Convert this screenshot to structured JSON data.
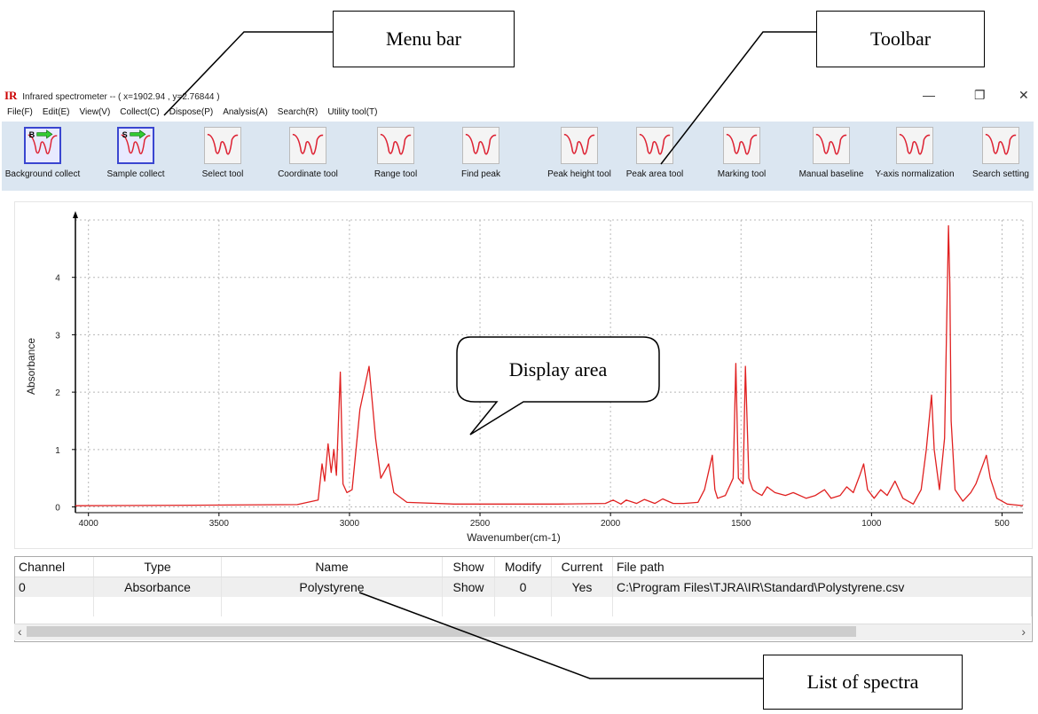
{
  "annotations": {
    "menu_bar": "Menu bar",
    "toolbar": "Toolbar",
    "display_area": "Display area",
    "list_of_spectra": "List of spectra"
  },
  "window": {
    "logo": "IR",
    "title": "Infrared spectrometer -- ( x=1902.94 , y=2.76844 )",
    "minimize_glyph": "—",
    "restore_glyph": "❐",
    "close_glyph": "✕"
  },
  "menu": [
    "File(F)",
    "Edit(E)",
    "View(V)",
    "Collect(C)",
    "Dispose(P)",
    "Analysis(A)",
    "Search(R)",
    "Utility tool(T)"
  ],
  "toolbar": [
    {
      "label": "Background collect",
      "icon": "background-collect-icon",
      "active": true,
      "badge": "B"
    },
    {
      "label": "Sample collect",
      "icon": "sample-collect-icon",
      "active": true,
      "badge": "S"
    },
    {
      "label": "Select tool",
      "icon": "select-tool-icon"
    },
    {
      "label": "Coordinate tool",
      "icon": "coordinate-tool-icon"
    },
    {
      "label": "Range tool",
      "icon": "range-tool-icon"
    },
    {
      "label": "Find peak",
      "icon": "find-peak-icon"
    },
    {
      "label": "Peak height tool",
      "icon": "peak-height-tool-icon"
    },
    {
      "label": "Peak area tool",
      "icon": "peak-area-tool-icon"
    },
    {
      "label": "Marking tool",
      "icon": "marking-tool-icon"
    },
    {
      "label": "Manual baseline",
      "icon": "manual-baseline-icon"
    },
    {
      "label": "Y-axis normalization",
      "icon": "y-axis-normalization-icon"
    },
    {
      "label": "Search setting",
      "icon": "search-setting-icon"
    }
  ],
  "chart_data": {
    "type": "line",
    "xlabel": "Wavenumber(cm-1)",
    "ylabel": "Absorbance",
    "xlim": [
      4050,
      420
    ],
    "ylim": [
      -0.1,
      5.0
    ],
    "x_reversed": true,
    "x_ticks": [
      4000,
      3500,
      3000,
      2500,
      2000,
      1500,
      1000,
      500
    ],
    "y_ticks": [
      0,
      1,
      2,
      3,
      4
    ],
    "grid": true,
    "series": [
      {
        "color": "#e02020",
        "points": [
          [
            4050,
            0.02
          ],
          [
            3600,
            0.03
          ],
          [
            3200,
            0.04
          ],
          [
            3120,
            0.12
          ],
          [
            3105,
            0.75
          ],
          [
            3095,
            0.45
          ],
          [
            3082,
            1.1
          ],
          [
            3070,
            0.6
          ],
          [
            3060,
            1.0
          ],
          [
            3050,
            0.55
          ],
          [
            3035,
            2.35
          ],
          [
            3025,
            0.4
          ],
          [
            3010,
            0.25
          ],
          [
            2990,
            0.3
          ],
          [
            2960,
            1.7
          ],
          [
            2925,
            2.45
          ],
          [
            2900,
            1.2
          ],
          [
            2880,
            0.5
          ],
          [
            2850,
            0.75
          ],
          [
            2830,
            0.25
          ],
          [
            2780,
            0.08
          ],
          [
            2600,
            0.05
          ],
          [
            2200,
            0.05
          ],
          [
            2020,
            0.06
          ],
          [
            1990,
            0.12
          ],
          [
            1960,
            0.05
          ],
          [
            1940,
            0.12
          ],
          [
            1900,
            0.06
          ],
          [
            1870,
            0.13
          ],
          [
            1830,
            0.06
          ],
          [
            1800,
            0.14
          ],
          [
            1760,
            0.06
          ],
          [
            1720,
            0.06
          ],
          [
            1665,
            0.08
          ],
          [
            1640,
            0.3
          ],
          [
            1610,
            0.9
          ],
          [
            1600,
            0.3
          ],
          [
            1590,
            0.15
          ],
          [
            1560,
            0.2
          ],
          [
            1530,
            0.5
          ],
          [
            1520,
            2.5
          ],
          [
            1510,
            0.5
          ],
          [
            1492,
            0.4
          ],
          [
            1483,
            2.45
          ],
          [
            1470,
            0.5
          ],
          [
            1455,
            0.3
          ],
          [
            1440,
            0.25
          ],
          [
            1420,
            0.2
          ],
          [
            1400,
            0.35
          ],
          [
            1370,
            0.25
          ],
          [
            1330,
            0.2
          ],
          [
            1300,
            0.25
          ],
          [
            1250,
            0.15
          ],
          [
            1215,
            0.2
          ],
          [
            1180,
            0.3
          ],
          [
            1155,
            0.15
          ],
          [
            1120,
            0.2
          ],
          [
            1095,
            0.35
          ],
          [
            1070,
            0.25
          ],
          [
            1045,
            0.55
          ],
          [
            1030,
            0.75
          ],
          [
            1015,
            0.3
          ],
          [
            990,
            0.15
          ],
          [
            965,
            0.3
          ],
          [
            940,
            0.2
          ],
          [
            910,
            0.45
          ],
          [
            880,
            0.15
          ],
          [
            840,
            0.05
          ],
          [
            810,
            0.3
          ],
          [
            790,
            1.0
          ],
          [
            770,
            1.95
          ],
          [
            760,
            1.0
          ],
          [
            740,
            0.3
          ],
          [
            720,
            1.2
          ],
          [
            705,
            4.9
          ],
          [
            700,
            3.9
          ],
          [
            695,
            1.5
          ],
          [
            680,
            0.3
          ],
          [
            650,
            0.1
          ],
          [
            620,
            0.25
          ],
          [
            600,
            0.4
          ],
          [
            560,
            0.9
          ],
          [
            545,
            0.5
          ],
          [
            520,
            0.15
          ],
          [
            480,
            0.05
          ],
          [
            420,
            0.02
          ]
        ]
      }
    ]
  },
  "spectra_list": {
    "columns": [
      "Channel",
      "Type",
      "Name",
      "Show",
      "Modify",
      "Current",
      "File path"
    ],
    "rows": [
      [
        "0",
        "Absorbance",
        "Polystyrene",
        "Show",
        "0",
        "Yes",
        "C:\\Program Files\\TJRA\\IR\\Standard\\Polystyrene.csv"
      ]
    ]
  },
  "scrollbar": {
    "left_arrow": "‹",
    "right_arrow": "›"
  }
}
